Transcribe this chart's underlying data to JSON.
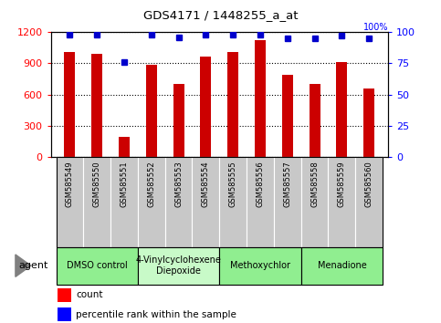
{
  "title": "GDS4171 / 1448255_a_at",
  "samples": [
    "GSM585549",
    "GSM585550",
    "GSM585551",
    "GSM585552",
    "GSM585553",
    "GSM585554",
    "GSM585555",
    "GSM585556",
    "GSM585557",
    "GSM585558",
    "GSM585559",
    "GSM585560"
  ],
  "counts": [
    1010,
    990,
    195,
    890,
    700,
    970,
    1010,
    1120,
    790,
    700,
    910,
    660
  ],
  "percentile_ranks": [
    98,
    98,
    76,
    98,
    96,
    98,
    98,
    98,
    95,
    95,
    97,
    95
  ],
  "bar_color": "#cc0000",
  "dot_color": "#0000cc",
  "ylim_left": [
    0,
    1200
  ],
  "ylim_right": [
    0,
    100
  ],
  "yticks_left": [
    0,
    300,
    600,
    900,
    1200
  ],
  "yticks_right": [
    0,
    25,
    50,
    75,
    100
  ],
  "agents": [
    {
      "label": "DMSO control",
      "start": 0,
      "end": 2,
      "color": "#90ee90"
    },
    {
      "label": "4-Vinylcyclohexene\nDiepoxide",
      "start": 3,
      "end": 5,
      "color": "#c8fac8"
    },
    {
      "label": "Methoxychlor",
      "start": 6,
      "end": 8,
      "color": "#90ee90"
    },
    {
      "label": "Menadione",
      "start": 9,
      "end": 11,
      "color": "#90ee90"
    }
  ],
  "agent_label": "agent",
  "legend_count_label": "count",
  "legend_pct_label": "percentile rank within the sample",
  "bar_width": 0.4,
  "sample_bg_color": "#c8c8c8",
  "sample_border_color": "#ffffff"
}
